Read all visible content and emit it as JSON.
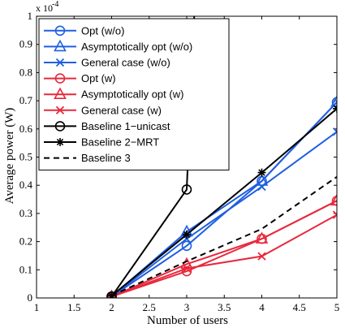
{
  "chart_data": {
    "type": "line",
    "title": "",
    "xlabel": "Number of users",
    "ylabel": "Average power (W)",
    "y_exponent_label": "x 10",
    "y_exponent_power": "-4",
    "xlim": [
      1,
      5
    ],
    "ylim": [
      0,
      1.0
    ],
    "x_ticks": [
      1,
      1.5,
      2,
      2.5,
      3,
      3.5,
      4,
      4.5,
      5
    ],
    "y_ticks": [
      0,
      0.1,
      0.2,
      0.3,
      0.4,
      0.5,
      0.6,
      0.7,
      0.8,
      0.9,
      1
    ],
    "grid": false,
    "legend_position": "top-left",
    "series": [
      {
        "name": "Opt (w/o)",
        "color": "#1f5fe0",
        "marker": "circle",
        "dash": "solid",
        "x": [
          2,
          3,
          4,
          5
        ],
        "y": [
          0.005,
          0.185,
          0.415,
          0.695
        ]
      },
      {
        "name": "Asymptotically opt (w/o)",
        "color": "#1f5fe0",
        "marker": "triangle",
        "dash": "solid",
        "x": [
          2,
          3,
          4,
          5
        ],
        "y": [
          0.005,
          0.235,
          0.415,
          0.695
        ]
      },
      {
        "name": "General case (w/o)",
        "color": "#1f5fe0",
        "marker": "x",
        "dash": "solid",
        "x": [
          2,
          3,
          4,
          5
        ],
        "y": [
          0.005,
          0.21,
          0.395,
          0.59
        ]
      },
      {
        "name": "Opt (w)",
        "color": "#e8283c",
        "marker": "circle",
        "dash": "solid",
        "x": [
          2,
          3,
          4,
          5
        ],
        "y": [
          0.005,
          0.095,
          0.21,
          0.345
        ]
      },
      {
        "name": "Asymptotically opt (w)",
        "color": "#e8283c",
        "marker": "triangle",
        "dash": "solid",
        "x": [
          2,
          3,
          4,
          5
        ],
        "y": [
          0.005,
          0.12,
          0.21,
          0.345
        ]
      },
      {
        "name": "General case (w)",
        "color": "#e8283c",
        "marker": "x",
        "dash": "solid",
        "x": [
          2,
          3,
          4,
          5
        ],
        "y": [
          0.005,
          0.105,
          0.148,
          0.295
        ]
      },
      {
        "name": "Baseline 1−unicast",
        "color": "#000000",
        "marker": "circle",
        "dash": "solid",
        "x": [
          2,
          3,
          3.1
        ],
        "y": [
          0.005,
          0.385,
          1.0
        ]
      },
      {
        "name": "Baseline 2−MRT",
        "color": "#000000",
        "marker": "star",
        "dash": "solid",
        "x": [
          2,
          3,
          4,
          5
        ],
        "y": [
          0.008,
          0.225,
          0.445,
          0.672
        ]
      },
      {
        "name": "Baseline 3",
        "color": "#000000",
        "marker": "none",
        "dash": "dashed",
        "x": [
          2,
          3,
          4,
          5
        ],
        "y": [
          0.008,
          0.13,
          0.245,
          0.43
        ]
      }
    ]
  }
}
